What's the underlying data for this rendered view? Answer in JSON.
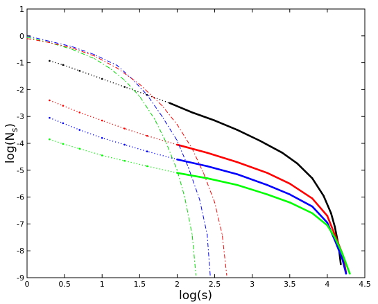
{
  "chart_data": {
    "type": "scatter",
    "title": "",
    "xlabel": "log(s)",
    "ylabel_main": "log(N",
    "ylabel_sub": "s",
    "ylabel_close": ")",
    "xlim": [
      0,
      4.5
    ],
    "ylim": [
      -9,
      1
    ],
    "xticks": [
      "0",
      "0.5",
      "1",
      "1.5",
      "2",
      "2.5",
      "3",
      "3.5",
      "4",
      "4.5"
    ],
    "yticks": [
      "1",
      "0",
      "-1",
      "-2",
      "-3",
      "-4",
      "-5",
      "-6",
      "-7",
      "-8",
      "-9"
    ],
    "grid": false,
    "legend": "none",
    "series": [
      {
        "color": "#000000",
        "style": "dots",
        "points": [
          [
            0.3,
            -0.93
          ],
          [
            0.48,
            -1.08
          ],
          [
            0.7,
            -1.3
          ],
          [
            1.0,
            -1.6
          ],
          [
            1.3,
            -1.9
          ],
          [
            1.6,
            -2.2
          ],
          [
            1.9,
            -2.5
          ],
          [
            2.2,
            -2.85
          ],
          [
            2.5,
            -3.15
          ],
          [
            2.8,
            -3.5
          ],
          [
            3.1,
            -3.9
          ],
          [
            3.4,
            -4.35
          ],
          [
            3.6,
            -4.75
          ],
          [
            3.8,
            -5.3
          ],
          [
            3.95,
            -5.95
          ],
          [
            4.05,
            -6.6
          ],
          [
            4.1,
            -7.1
          ],
          [
            4.15,
            -7.8
          ],
          [
            4.18,
            -8.5
          ]
        ]
      },
      {
        "color": "#ff0000",
        "style": "dots",
        "points": [
          [
            0.3,
            -2.4
          ],
          [
            0.48,
            -2.6
          ],
          [
            0.7,
            -2.85
          ],
          [
            1.0,
            -3.15
          ],
          [
            1.3,
            -3.45
          ],
          [
            1.6,
            -3.72
          ],
          [
            2.0,
            -4.05
          ],
          [
            2.4,
            -4.35
          ],
          [
            2.8,
            -4.7
          ],
          [
            3.2,
            -5.1
          ],
          [
            3.5,
            -5.5
          ],
          [
            3.8,
            -6.05
          ],
          [
            4.0,
            -6.7
          ],
          [
            4.1,
            -7.4
          ],
          [
            4.2,
            -8.1
          ],
          [
            4.25,
            -8.8
          ]
        ]
      },
      {
        "color": "#0000ff",
        "style": "dots",
        "points": [
          [
            0.3,
            -3.05
          ],
          [
            0.48,
            -3.25
          ],
          [
            0.7,
            -3.5
          ],
          [
            1.0,
            -3.8
          ],
          [
            1.3,
            -4.05
          ],
          [
            1.6,
            -4.3
          ],
          [
            2.0,
            -4.6
          ],
          [
            2.4,
            -4.85
          ],
          [
            2.8,
            -5.15
          ],
          [
            3.2,
            -5.55
          ],
          [
            3.5,
            -5.9
          ],
          [
            3.8,
            -6.35
          ],
          [
            4.0,
            -6.95
          ],
          [
            4.1,
            -7.6
          ],
          [
            4.2,
            -8.3
          ],
          [
            4.25,
            -8.85
          ]
        ]
      },
      {
        "color": "#00ff00",
        "style": "dots",
        "points": [
          [
            0.3,
            -3.85
          ],
          [
            0.48,
            -4.02
          ],
          [
            0.7,
            -4.2
          ],
          [
            1.0,
            -4.45
          ],
          [
            1.3,
            -4.65
          ],
          [
            1.6,
            -4.85
          ],
          [
            2.0,
            -5.1
          ],
          [
            2.4,
            -5.3
          ],
          [
            2.8,
            -5.55
          ],
          [
            3.2,
            -5.9
          ],
          [
            3.5,
            -6.2
          ],
          [
            3.8,
            -6.6
          ],
          [
            4.0,
            -7.05
          ],
          [
            4.1,
            -7.5
          ],
          [
            4.2,
            -8.1
          ],
          [
            4.3,
            -8.85
          ]
        ]
      },
      {
        "color": "#00dd00",
        "style": "dashdot",
        "points": [
          [
            0.0,
            -0.05
          ],
          [
            0.3,
            -0.25
          ],
          [
            0.6,
            -0.5
          ],
          [
            0.9,
            -0.85
          ],
          [
            1.1,
            -1.2
          ],
          [
            1.3,
            -1.65
          ],
          [
            1.5,
            -2.25
          ],
          [
            1.7,
            -3.1
          ],
          [
            1.85,
            -3.95
          ],
          [
            2.0,
            -5.0
          ],
          [
            2.1,
            -6.0
          ],
          [
            2.2,
            -7.4
          ],
          [
            2.25,
            -8.9
          ]
        ]
      },
      {
        "color": "#0000ff",
        "style": "dashdot",
        "points": [
          [
            0.0,
            0.0
          ],
          [
            0.3,
            -0.2
          ],
          [
            0.6,
            -0.4
          ],
          [
            0.9,
            -0.7
          ],
          [
            1.2,
            -1.1
          ],
          [
            1.4,
            -1.6
          ],
          [
            1.6,
            -2.2
          ],
          [
            1.8,
            -3.0
          ],
          [
            2.0,
            -3.9
          ],
          [
            2.15,
            -4.9
          ],
          [
            2.3,
            -6.1
          ],
          [
            2.4,
            -7.4
          ],
          [
            2.44,
            -8.9
          ]
        ]
      },
      {
        "color": "#ff0000",
        "style": "dashdot",
        "points": [
          [
            0.0,
            -0.1
          ],
          [
            0.3,
            -0.25
          ],
          [
            0.6,
            -0.45
          ],
          [
            0.9,
            -0.75
          ],
          [
            1.2,
            -1.2
          ],
          [
            1.5,
            -1.8
          ],
          [
            1.8,
            -2.6
          ],
          [
            2.0,
            -3.3
          ],
          [
            2.2,
            -4.2
          ],
          [
            2.35,
            -5.1
          ],
          [
            2.5,
            -6.2
          ],
          [
            2.6,
            -7.4
          ],
          [
            2.66,
            -8.9
          ]
        ]
      }
    ]
  }
}
